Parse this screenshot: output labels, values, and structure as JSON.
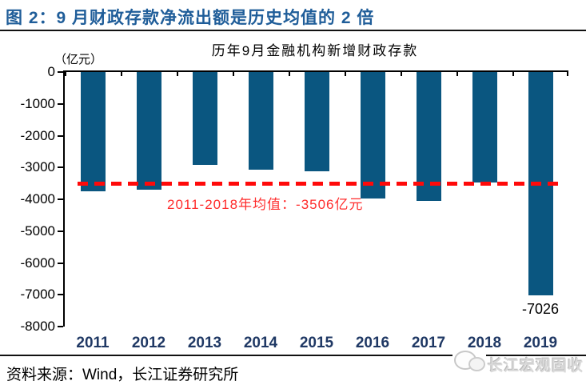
{
  "header": {
    "title": "图 2：9 月财政存款净流出额是历史均值的 2 倍"
  },
  "theme": {
    "figure_title_color": "#1F5D99",
    "axis_color": "#000000",
    "watermark_color": "#D9D9D9"
  },
  "chart_data": {
    "type": "bar",
    "title": "历年9月金融机构新增财政存款",
    "unit_label": "（亿元）",
    "categories": [
      "2011",
      "2012",
      "2013",
      "2014",
      "2015",
      "2016",
      "2017",
      "2018",
      "2019"
    ],
    "values": [
      -3745,
      -3695,
      -2930,
      -3080,
      -3110,
      -3975,
      -4040,
      -3480,
      -7026
    ],
    "ylim": [
      -8000,
      0
    ],
    "ytick_step": 1000,
    "yticks": [
      0,
      -1000,
      -2000,
      -3000,
      -4000,
      -5000,
      -6000,
      -7000,
      -8000
    ],
    "grid": false,
    "legend": "none",
    "bar_color": "#0A5680",
    "xlabel_color": "#1F3864",
    "mean_line": {
      "value": -3506,
      "label": "2011-2018年均值：-3506亿元",
      "color": "#FF0A0A",
      "label_color": "#FF2D2D",
      "style": "dashed"
    },
    "point_label": {
      "category": "2019",
      "text": "-7026"
    }
  },
  "footer": {
    "source": "资料来源：Wind，长江证券研究所",
    "logo_text": "长江宏观固收"
  }
}
